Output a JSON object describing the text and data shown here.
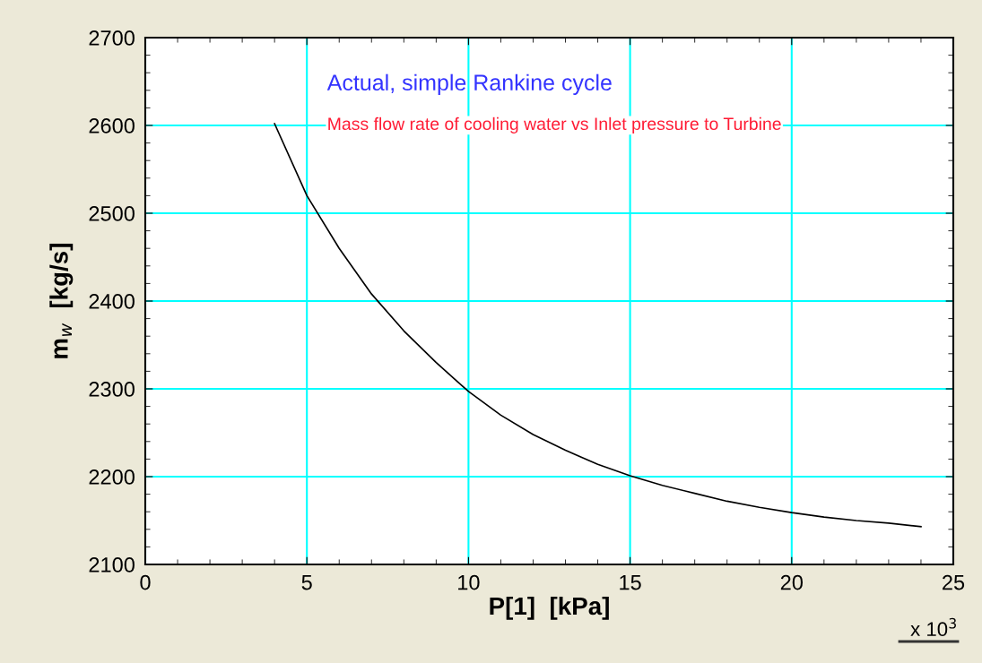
{
  "chart_data": {
    "type": "line",
    "title": "Actual, simple Rankine cycle",
    "subtitle": "Mass flow rate of cooling water vs Inlet pressure to Turbine",
    "xlabel": "P[1]  [kPa]",
    "ylabel": "m$_{w}$  [kg/s]",
    "annotations": [
      "x 10$^{3}$"
    ],
    "x": [
      4,
      5,
      6,
      7,
      8,
      9,
      10,
      11,
      12,
      13,
      14,
      15,
      16,
      17,
      18,
      19,
      20,
      21,
      22,
      23,
      24
    ],
    "series": [
      {
        "color": "#000000",
        "values": [
          2602,
          2520,
          2460,
          2408,
          2366,
          2330,
          2297,
          2270,
          2248,
          2230,
          2214,
          2201,
          2190,
          2181,
          2172,
          2165,
          2159,
          2154,
          2150,
          2147,
          2143
        ]
      }
    ],
    "xlim": [
      0,
      25
    ],
    "xticks": [
      0,
      5,
      10,
      15,
      20,
      25
    ],
    "ylim": [
      2100,
      2700
    ],
    "yticks": [
      2100,
      2200,
      2300,
      2400,
      2500,
      2600,
      2700
    ],
    "grid": true,
    "marker": "none",
    "line_style": "solid"
  }
}
